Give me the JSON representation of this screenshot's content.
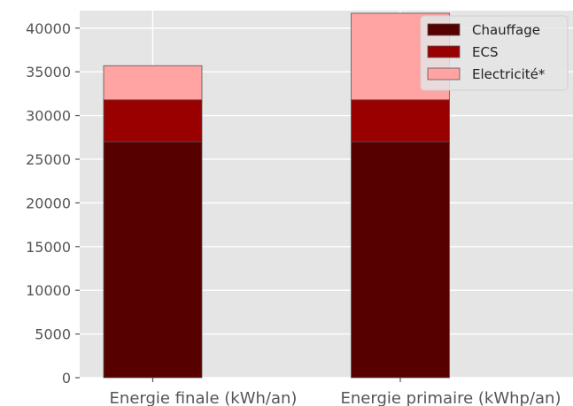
{
  "chart_data": {
    "type": "bar",
    "stacked": true,
    "categories": [
      "Energie finale (kWh/an)",
      "Energie primaire (kWhp/an)"
    ],
    "series": [
      {
        "name": "Chauffage",
        "values": [
          27000,
          27000
        ],
        "color": "#570000"
      },
      {
        "name": "ECS",
        "values": [
          4800,
          4800
        ],
        "color": "#990000"
      },
      {
        "name": "Electricité*",
        "values": [
          3900,
          9900
        ],
        "color": "#ffa3a3"
      }
    ],
    "y_ticks": [
      0,
      5000,
      10000,
      15000,
      20000,
      25000,
      30000,
      35000,
      40000
    ],
    "ylim": [
      0,
      42000
    ],
    "grid": true,
    "legend_position": "top-right",
    "style": {
      "background": "#e5e5e5",
      "grid_color": "#ffffff",
      "edge_color": "#555555"
    }
  }
}
